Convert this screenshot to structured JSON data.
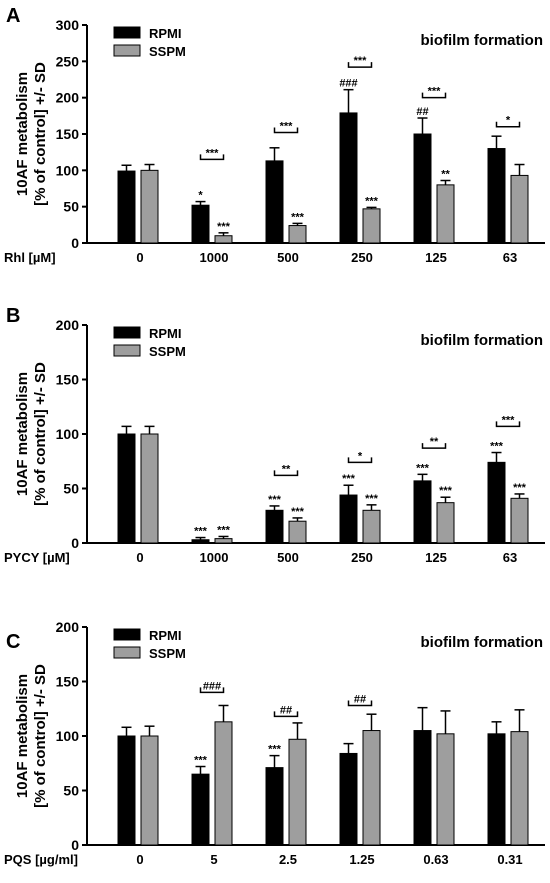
{
  "chart_data": [
    {
      "type": "bar",
      "panel": "A",
      "title": "biofilm formation",
      "ylabel_line1": "10AF metabolism",
      "ylabel_line2": "[% of control] +/- SD",
      "xlabel": "Rhl [µM]",
      "categories": [
        "0",
        "1000",
        "500",
        "250",
        "125",
        "63"
      ],
      "ylim": [
        0,
        300
      ],
      "yticks": [
        "0",
        "50",
        "100",
        "150",
        "200",
        "250",
        "300"
      ],
      "legend": [
        "RPMI",
        "SSPM"
      ],
      "series": [
        {
          "name": "RPMI",
          "color": "#000000",
          "values": [
            99,
            52,
            113,
            179,
            150,
            130
          ],
          "sd": [
            8,
            5,
            18,
            32,
            22,
            17
          ],
          "labels": [
            "",
            "*",
            "",
            "###",
            "##",
            ""
          ]
        },
        {
          "name": "SSPM",
          "color": "#9e9e9e",
          "values": [
            100,
            10,
            24,
            47,
            80,
            93
          ],
          "sd": [
            8,
            4,
            3,
            2,
            6,
            15
          ],
          "labels": [
            "",
            "***",
            "***",
            "***",
            "**",
            ""
          ]
        }
      ],
      "brackets": [
        {
          "category": 1,
          "label": "***",
          "y": 115
        },
        {
          "category": 2,
          "label": "***",
          "y": 152
        },
        {
          "category": 3,
          "label": "***",
          "y": 242
        },
        {
          "category": 4,
          "label": "***",
          "y": 200
        },
        {
          "category": 5,
          "label": "*",
          "y": 160
        }
      ]
    },
    {
      "type": "bar",
      "panel": "B",
      "title": "biofilm formation",
      "ylabel_line1": "10AF metabolism",
      "ylabel_line2": "[% of control] +/- SD",
      "xlabel": "PYCY [µM]",
      "categories": [
        "0",
        "1000",
        "500",
        "250",
        "125",
        "63"
      ],
      "ylim": [
        0,
        200
      ],
      "yticks": [
        "0",
        "50",
        "100",
        "150",
        "200"
      ],
      "legend": [
        "RPMI",
        "SSPM"
      ],
      "series": [
        {
          "name": "RPMI",
          "color": "#000000",
          "values": [
            100,
            3,
            30,
            44,
            57,
            74
          ],
          "sd": [
            7,
            2,
            4,
            9,
            6,
            9
          ],
          "labels": [
            "",
            "***",
            "***",
            "***",
            "***",
            "***"
          ]
        },
        {
          "name": "SSPM",
          "color": "#9e9e9e",
          "values": [
            100,
            4,
            20,
            30,
            37,
            41
          ],
          "sd": [
            7,
            2,
            3,
            5,
            5,
            4
          ],
          "labels": [
            "",
            "***",
            "***",
            "***",
            "***",
            "***"
          ]
        }
      ],
      "brackets": [
        {
          "category": 2,
          "label": "**",
          "y": 62
        },
        {
          "category": 3,
          "label": "*",
          "y": 74
        },
        {
          "category": 4,
          "label": "**",
          "y": 87
        },
        {
          "category": 5,
          "label": "***",
          "y": 107
        }
      ]
    },
    {
      "type": "bar",
      "panel": "C",
      "title": "biofilm formation",
      "ylabel_line1": "10AF metabolism",
      "ylabel_line2": "[% of control] +/- SD",
      "xlabel": "PQS [µg/ml]",
      "categories": [
        "0",
        "5",
        "2.5",
        "1.25",
        "0.63",
        "0.31"
      ],
      "ylim": [
        0,
        200
      ],
      "yticks": [
        "0",
        "50",
        "100",
        "150",
        "200"
      ],
      "legend": [
        "RPMI",
        "SSPM"
      ],
      "series": [
        {
          "name": "RPMI",
          "color": "#000000",
          "values": [
            100,
            65,
            71,
            84,
            105,
            102
          ],
          "sd": [
            8,
            7,
            11,
            9,
            21,
            11
          ],
          "labels": [
            "",
            "***",
            "***",
            "",
            "",
            ""
          ]
        },
        {
          "name": "SSPM",
          "color": "#9e9e9e",
          "values": [
            100,
            113,
            97,
            105,
            102,
            104
          ],
          "sd": [
            9,
            15,
            15,
            15,
            21,
            20
          ],
          "labels": [
            "",
            "",
            "",
            "",
            "",
            ""
          ]
        }
      ],
      "brackets": [
        {
          "category": 1,
          "label": "###",
          "y": 140
        },
        {
          "category": 2,
          "label": "##",
          "y": 118
        },
        {
          "category": 3,
          "label": "##",
          "y": 128
        }
      ]
    }
  ]
}
